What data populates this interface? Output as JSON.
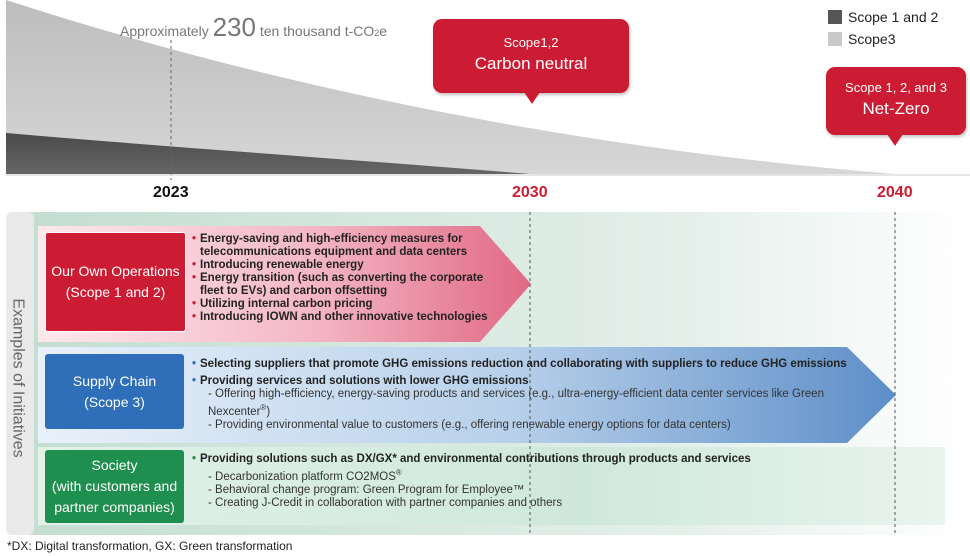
{
  "legend": {
    "items": [
      {
        "label": "Scope 1 and 2",
        "color": "#555555"
      },
      {
        "label": "Scope3",
        "color": "#c9c9c9"
      }
    ]
  },
  "emissions": {
    "prefix": "Approximately",
    "value": "230",
    "unit_prefix": "ten thousand t-CO",
    "unit_sub": "2",
    "unit_suffix": "e"
  },
  "milestones": [
    {
      "year": "2023",
      "color": "#111111"
    },
    {
      "year": "2030",
      "color": "#cc1c33",
      "line1": "Scope1,2",
      "line2": "Carbon neutral"
    },
    {
      "year": "2040",
      "color": "#cc1c33",
      "line1": "Scope 1, 2, and 3",
      "line2": "Net-Zero"
    }
  ],
  "side_label": "Examples of Initiatives",
  "initiatives": {
    "own_operations": {
      "title_line1": "Our Own Operations",
      "title_line2": "(Scope 1 and 2)",
      "items": [
        "Energy-saving and high-efficiency measures for telecommunications equipment and data centers",
        "Introducing renewable energy",
        "Energy transition (such as converting the corporate fleet to EVs) and carbon offsetting",
        "Utilizing internal carbon pricing",
        "Introducing IOWN and other innovative technologies"
      ]
    },
    "supply_chain": {
      "title_line1": "Supply Chain",
      "title_line2": "(Scope 3)",
      "main1": "Selecting suppliers that promote GHG emissions reduction and collaborating with suppliers to reduce GHG emissions",
      "main2": "Providing services and solutions with lower GHG emissions",
      "sub1_pre": "- Offering high-efficiency, energy-saving products and services (e.g., ultra-energy-efficient data center services like Green Nexcenter",
      "sub1_reg": "®",
      "sub1_post": ")",
      "sub2": "- Providing environmental value to customers (e.g., offering renewable energy options for data centers)"
    },
    "society": {
      "title_line1": "Society",
      "title_line2": "(with customers and",
      "title_line3": "partner companies)",
      "main1": "Providing solutions such as DX/GX* and environmental contributions through products and services",
      "sub1_pre": "- Decarbonization platform CO2MOS",
      "sub1_reg": "®",
      "sub2": "- Behavioral change program: Green Program for Employee™",
      "sub3": "- Creating J-Credit in collaboration with partner companies and others"
    }
  },
  "footnote": "*DX: Digital transformation, GX: Green transformation"
}
